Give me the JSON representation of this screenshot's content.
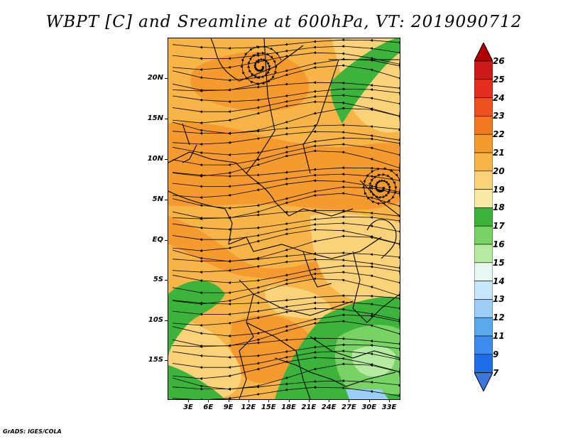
{
  "title": "WBPT [C] and Sreamline at 600hPa, VT: 2019090712",
  "credit": "GrADS: IGES/COLA",
  "map": {
    "lat_labels": [
      "20N",
      "15N",
      "10N",
      "5N",
      "EQ",
      "5S",
      "10S",
      "15S"
    ],
    "lon_labels": [
      "3E",
      "6E",
      "9E",
      "12E",
      "15E",
      "18E",
      "21E",
      "24E",
      "27E",
      "30E",
      "33E"
    ],
    "lat_range": [
      -20,
      24
    ],
    "lon_range": [
      0,
      35
    ]
  },
  "colorbar": {
    "levels": [
      "26",
      "25",
      "24",
      "23",
      "22",
      "21",
      "20",
      "19",
      "18",
      "17",
      "16",
      "15",
      "14",
      "13",
      "12",
      "11",
      "9",
      "7"
    ],
    "colors": [
      "#b00000",
      "#cc1a1a",
      "#e62e1e",
      "#f0501e",
      "#f27a1e",
      "#f59a2e",
      "#f7b548",
      "#fad27a",
      "#fbeaa6",
      "#3cb43c",
      "#78d264",
      "#b4eba0",
      "#e6f8f0",
      "#c8e6fa",
      "#9ccef7",
      "#5aaaf0",
      "#3c8cf0",
      "#1e6ee6",
      "#3c78dc"
    ]
  }
}
